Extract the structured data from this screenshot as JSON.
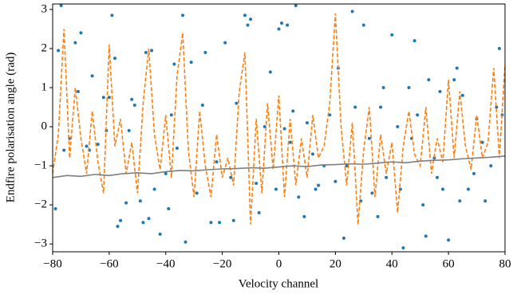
{
  "chart_data": {
    "type": "line",
    "xlabel": "Velocity channel",
    "ylabel": "Endfire polarisation angle (rad)",
    "xlim": [
      -80,
      80
    ],
    "ylim": [
      -3.2,
      3.14
    ],
    "xticks": [
      {
        "value": -80,
        "label": "−80"
      },
      {
        "value": -60,
        "label": "−60"
      },
      {
        "value": -40,
        "label": "−40"
      },
      {
        "value": -20,
        "label": "−20"
      },
      0,
      20,
      40,
      60,
      80
    ],
    "yticks": [
      {
        "value": -3,
        "label": "−3"
      },
      {
        "value": -2,
        "label": "−2"
      },
      {
        "value": -1,
        "label": "−1"
      },
      0,
      1,
      2,
      3
    ],
    "series": [
      {
        "type": "scatter",
        "color": "#1f77b4",
        "x": [
          -79,
          -78,
          -77,
          -76,
          -74,
          -72,
          -71,
          -70,
          -68,
          -67,
          -66,
          -64,
          -62,
          -61,
          -60,
          -59,
          -58,
          -57,
          -56,
          -54,
          -53,
          -52,
          -51,
          -49,
          -48,
          -47,
          -46,
          -45,
          -44,
          -42,
          -40,
          -39,
          -38,
          -37,
          -36,
          -34,
          -33,
          -31,
          -29,
          -27,
          -26,
          -24,
          -22,
          -21,
          -19,
          -17,
          -16,
          -15,
          -12,
          -11,
          -10,
          -8,
          -7,
          -5,
          -3,
          -1,
          0,
          1,
          2,
          3,
          4,
          5,
          6,
          7,
          9,
          10,
          12,
          13,
          14,
          16,
          18,
          20,
          21,
          23,
          24,
          26,
          27,
          29,
          30,
          32,
          33,
          35,
          36,
          37,
          38,
          40,
          42,
          43,
          44,
          46,
          47,
          48,
          49,
          51,
          52,
          53,
          55,
          56,
          57,
          58,
          60,
          62,
          63,
          64,
          65,
          67,
          69,
          70,
          72,
          73,
          75,
          77,
          78,
          79
        ],
        "values": [
          -2.1,
          1.95,
          3.1,
          -0.6,
          -0.3,
          2.15,
          0.9,
          2.4,
          -0.5,
          -0.6,
          1.3,
          -0.45,
          0.75,
          -0.1,
          0.75,
          2.85,
          1.75,
          -2.55,
          -2.4,
          -1.95,
          -0.1,
          0.7,
          0.55,
          -1.9,
          -2.45,
          1.9,
          -2.35,
          1.95,
          -1.6,
          -2.75,
          -1.2,
          -2.1,
          0.3,
          1.6,
          -0.55,
          2.85,
          -2.95,
          1.65,
          -1.7,
          0.55,
          1.9,
          -2.45,
          -0.9,
          -2.45,
          2.15,
          -1.3,
          -2.4,
          0.6,
          2.85,
          2.6,
          2.75,
          -1.45,
          -2.2,
          0.0,
          1.4,
          -1.6,
          2.5,
          2.65,
          -0.05,
          2.6,
          -0.4,
          0.4,
          3.1,
          -1.8,
          -2.3,
          0.1,
          -0.7,
          -1.6,
          -1.5,
          -1.0,
          0.3,
          -1.4,
          1.5,
          -2.85,
          -1.0,
          2.95,
          0.5,
          -1.9,
          2.6,
          -0.3,
          -1.7,
          -2.3,
          0.5,
          1.0,
          -1.3,
          2.35,
          0.0,
          -1.6,
          -3.1,
          1.0,
          -0.3,
          2.2,
          0.3,
          -2.0,
          -2.8,
          1.2,
          -0.8,
          -1.3,
          0.9,
          -1.6,
          -2.9,
          1.2,
          1.5,
          -1.9,
          0.8,
          -1.6,
          -1.2,
          0.2,
          -0.4,
          -1.9,
          -1.0,
          0.5,
          2.0,
          0.3
        ]
      },
      {
        "type": "line",
        "style": "dashed",
        "color": "#ff7f0e",
        "x": [
          -80,
          -78,
          -76,
          -74,
          -72,
          -70,
          -68,
          -66,
          -64,
          -62,
          -60,
          -58,
          -56,
          -54,
          -52,
          -50,
          -48,
          -46,
          -44,
          -42,
          -40,
          -38,
          -36,
          -34,
          -32,
          -30,
          -28,
          -26,
          -24,
          -22,
          -20,
          -18,
          -16,
          -14,
          -12,
          -10,
          -8,
          -6,
          -4,
          -2,
          0,
          2,
          4,
          6,
          8,
          10,
          12,
          14,
          16,
          18,
          20,
          22,
          24,
          26,
          28,
          30,
          32,
          34,
          36,
          38,
          40,
          42,
          44,
          46,
          48,
          50,
          52,
          54,
          56,
          58,
          60,
          62,
          64,
          66,
          68,
          70,
          72,
          74,
          76,
          78,
          80
        ],
        "values": [
          -1.2,
          -0.2,
          2.5,
          -0.8,
          1.0,
          -0.3,
          -1.2,
          0.4,
          -0.9,
          -1.7,
          2.1,
          -0.5,
          0.2,
          -1.2,
          -0.4,
          -1.7,
          0.6,
          2.0,
          -0.2,
          -1.1,
          0.3,
          -1.3,
          1.3,
          2.4,
          -0.6,
          -1.8,
          0.4,
          -1.0,
          -1.8,
          -0.2,
          -1.3,
          -0.8,
          -1.5,
          0.9,
          1.9,
          -2.5,
          0.2,
          -1.7,
          0.6,
          -1.1,
          0.8,
          -1.8,
          0.2,
          -1.5,
          -0.3,
          -1.3,
          0.3,
          -0.8,
          -0.5,
          0.6,
          2.9,
          0.0,
          -1.5,
          0.1,
          -2.5,
          -0.6,
          0.5,
          -1.8,
          -0.2,
          -1.2,
          -0.4,
          -2.2,
          -0.5,
          0.4,
          -0.7,
          -1.0,
          0.5,
          -1.2,
          -0.3,
          -0.9,
          1.2,
          -0.8,
          0.9,
          -0.5,
          -1.1,
          0.3,
          -0.8,
          -0.4,
          1.5,
          -0.8,
          1.6
        ]
      },
      {
        "type": "line",
        "style": "solid",
        "color": "#7f7f7f",
        "x": [
          -80,
          -75,
          -70,
          -65,
          -60,
          -55,
          -50,
          -45,
          -40,
          -35,
          -30,
          -25,
          -20,
          -15,
          -10,
          -5,
          0,
          5,
          10,
          15,
          20,
          25,
          30,
          35,
          40,
          45,
          50,
          55,
          60,
          65,
          70,
          75,
          80
        ],
        "values": [
          -1.3,
          -1.25,
          -1.27,
          -1.22,
          -1.25,
          -1.2,
          -1.18,
          -1.2,
          -1.15,
          -1.12,
          -1.13,
          -1.1,
          -1.08,
          -1.07,
          -1.05,
          -1.06,
          -1.03,
          -1.0,
          -1.02,
          -0.98,
          -0.97,
          -0.95,
          -0.96,
          -0.93,
          -0.9,
          -0.92,
          -0.88,
          -0.86,
          -0.85,
          -0.82,
          -0.8,
          -0.78,
          -0.75
        ]
      }
    ]
  }
}
